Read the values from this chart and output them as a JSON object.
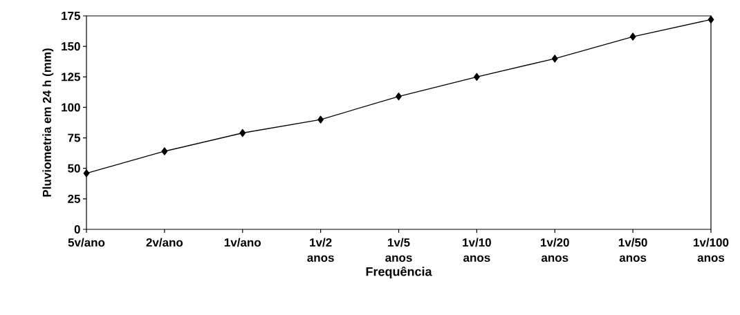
{
  "chart_data": {
    "type": "line",
    "xlabel": "Frequência",
    "ylabel": "Pluviometria em 24 h (mm)",
    "categories": [
      "5v/ano",
      "2v/ano",
      "1v/ano",
      "1v/2 anos",
      "1v/5 anos",
      "1v/10 anos",
      "1v/20 anos",
      "1v/50 anos",
      "1v/100 anos"
    ],
    "values": [
      46,
      64,
      79,
      90,
      109,
      125,
      140,
      158,
      172
    ],
    "color": "#000000",
    "marker": "diamond",
    "line_style": "solid",
    "grid": false,
    "ylim": [
      0,
      175
    ],
    "yticks": [
      0,
      25,
      50,
      75,
      100,
      125,
      150,
      175
    ]
  }
}
